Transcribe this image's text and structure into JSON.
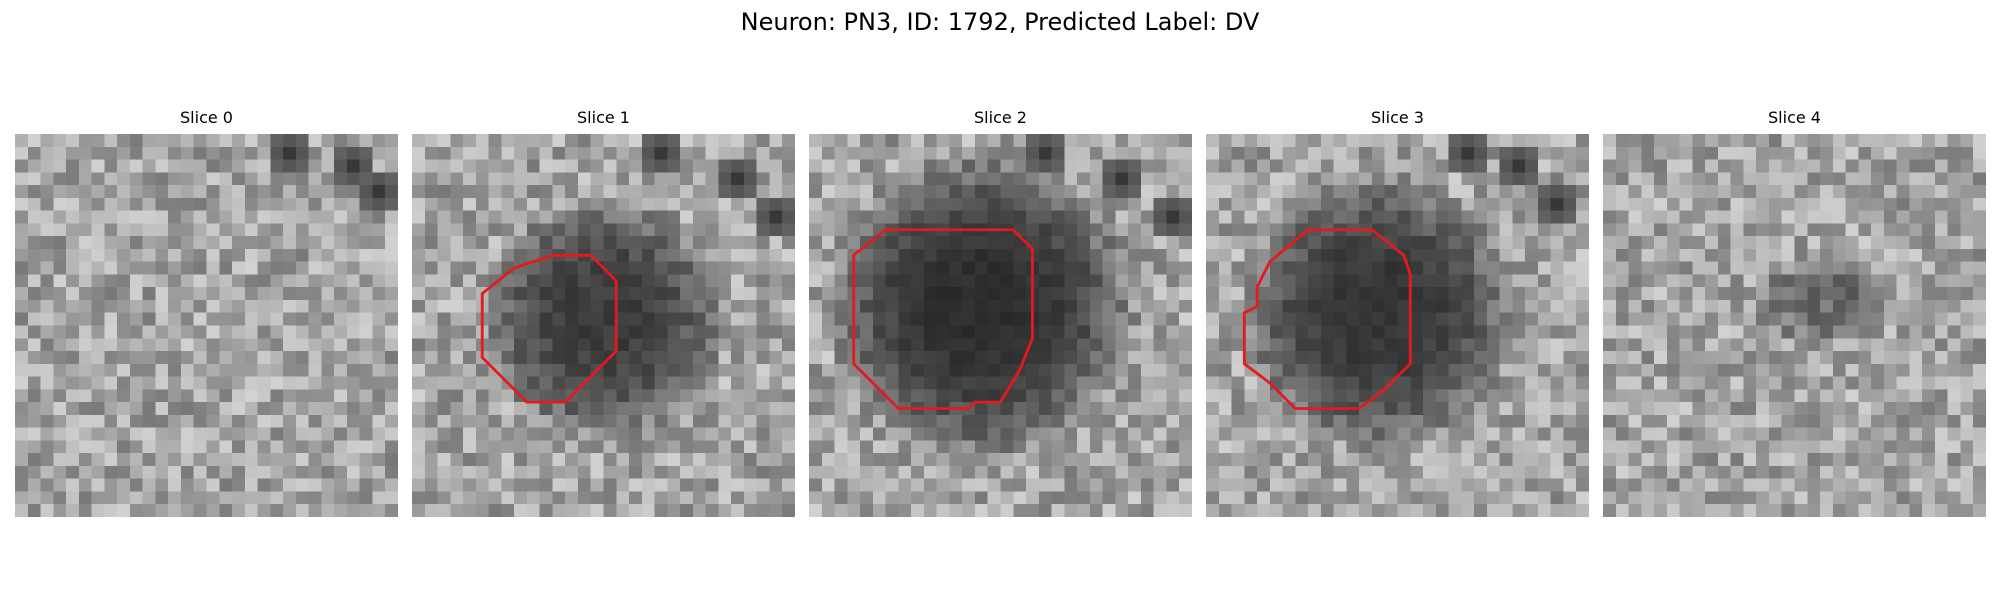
{
  "figure": {
    "title": "Neuron: PN3, ID: 1792, Predicted Label: DV"
  },
  "panels": [
    {
      "title": "Slice 0",
      "contour": false,
      "darkness": 0.0,
      "darkness_rx": 0,
      "darkness_ry": 0
    },
    {
      "title": "Slice 1",
      "contour": true,
      "darkness": 0.75,
      "darkness_rx": 8,
      "darkness_ry": 8
    },
    {
      "title": "Slice 2",
      "contour": true,
      "darkness": 0.85,
      "darkness_rx": 10,
      "darkness_ry": 10
    },
    {
      "title": "Slice 3",
      "contour": true,
      "darkness": 0.8,
      "darkness_rx": 9,
      "darkness_ry": 9
    },
    {
      "title": "Slice 4",
      "contour": false,
      "darkness": 0.4,
      "darkness_rx": 5,
      "darkness_ry": 3
    }
  ],
  "colors": {
    "contour": "#e41a1c",
    "background": "#ffffff"
  }
}
